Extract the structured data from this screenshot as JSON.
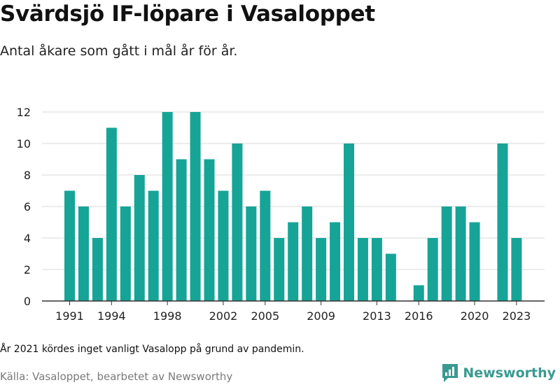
{
  "header": {
    "title": "Svärdsjö IF-löpare i Vasaloppet",
    "subtitle": "Antal åkare som gått i mål år för år."
  },
  "footer": {
    "note": "År 2021 kördes inget vanligt Vasalopp på grund av pandemin.",
    "source": "Källa: Vasaloppet, bearbetet av Newsworthy",
    "brand": "Newsworthy"
  },
  "colors": {
    "bar": "#16a497",
    "grid": "#d9d9d9",
    "axis": "#333333",
    "brand": "#3a9a91"
  },
  "chart_data": {
    "type": "bar",
    "title": "Svärdsjö IF-löpare i Vasaloppet",
    "subtitle": "Antal åkare som gått i mål år för år.",
    "xlabel": "",
    "ylabel": "",
    "ylim": [
      0,
      12
    ],
    "yticks": [
      0,
      2,
      4,
      6,
      8,
      10,
      12
    ],
    "xticks": [
      1991,
      1994,
      1998,
      2002,
      2005,
      2009,
      2013,
      2016,
      2020,
      2023
    ],
    "grid": true,
    "categories": [
      1991,
      1992,
      1993,
      1994,
      1995,
      1996,
      1997,
      1998,
      1999,
      2000,
      2001,
      2002,
      2003,
      2004,
      2005,
      2006,
      2007,
      2008,
      2009,
      2010,
      2011,
      2012,
      2013,
      2014,
      2015,
      2016,
      2017,
      2018,
      2019,
      2020,
      2021,
      2022,
      2023
    ],
    "values": [
      7,
      6,
      4,
      11,
      6,
      8,
      7,
      12,
      9,
      12,
      9,
      7,
      10,
      6,
      7,
      4,
      5,
      6,
      4,
      5,
      10,
      4,
      4,
      3,
      0,
      1,
      4,
      6,
      6,
      5,
      null,
      10,
      4
    ]
  }
}
